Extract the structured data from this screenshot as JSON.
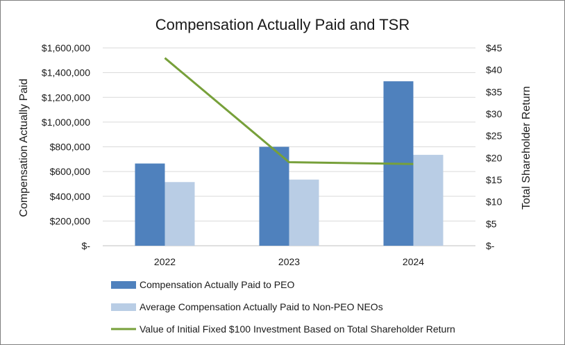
{
  "chart_data": {
    "type": "bar",
    "title": "Compensation Actually Paid and TSR",
    "categories": [
      "2022",
      "2023",
      "2024"
    ],
    "ylabel": "Compensation Actually Paid",
    "y2label": "Total Shareholder Return",
    "ylim": [
      0,
      1600000
    ],
    "y2lim": [
      0,
      45
    ],
    "yticks": [
      0,
      200000,
      400000,
      600000,
      800000,
      1000000,
      1200000,
      1400000,
      1600000
    ],
    "ytick_labels": [
      "$-",
      "$200,000",
      "$400,000",
      "$600,000",
      "$800,000",
      "$1,000,000",
      "$1,200,000",
      "$1,400,000",
      "$1,600,000"
    ],
    "y2ticks": [
      0,
      5,
      10,
      15,
      20,
      25,
      30,
      35,
      40,
      45
    ],
    "y2tick_labels": [
      "$-",
      "$5",
      "$10",
      "$15",
      "$20",
      "$25",
      "$30",
      "$35",
      "$40",
      "$45"
    ],
    "grid": true,
    "legend_position": "bottom",
    "series": [
      {
        "name": "Compensation Actually Paid to PEO",
        "kind": "bar",
        "axis": "left",
        "color": "#4f81bd",
        "values": [
          665000,
          800000,
          1330000
        ]
      },
      {
        "name": "Average Compensation Actually Paid to Non-PEO NEOs",
        "kind": "bar",
        "axis": "left",
        "color": "#b9cde5",
        "values": [
          515000,
          535000,
          735000
        ]
      },
      {
        "name": "Value of Initial Fixed $100 Investment Based on Total Shareholder Return",
        "kind": "line",
        "axis": "right",
        "color": "#77a03a",
        "values": [
          42.7,
          19.0,
          18.6
        ]
      }
    ]
  }
}
